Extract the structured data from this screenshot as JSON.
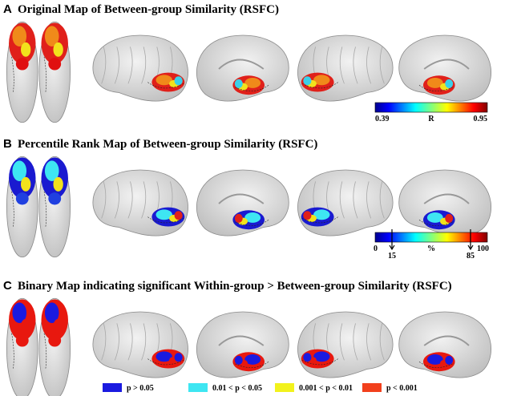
{
  "panels": [
    {
      "letter": "A",
      "title": "Original Map of Between-group Similarity (RSFC)",
      "colorbar": {
        "labels": [
          "0.39",
          "R",
          "0.95"
        ]
      }
    },
    {
      "letter": "B",
      "title": "Percentile Rank Map of Between-group Similarity (RSFC)",
      "colorbar": {
        "labels": [
          "0",
          "15",
          "%",
          "85",
          "100"
        ]
      }
    },
    {
      "letter": "C",
      "title": "Binary Map indicating significant Within-group > Between-group Similarity (RSFC)",
      "legend": [
        {
          "label": "p > 0.05",
          "color": "#1a1ae0"
        },
        {
          "label": "0.01 < p < 0.05",
          "color": "#3ee6f2"
        },
        {
          "label": "0.001 < p < 0.01",
          "color": "#f2f21c"
        },
        {
          "label": "p < 0.001",
          "color": "#f2401c"
        }
      ]
    }
  ]
}
